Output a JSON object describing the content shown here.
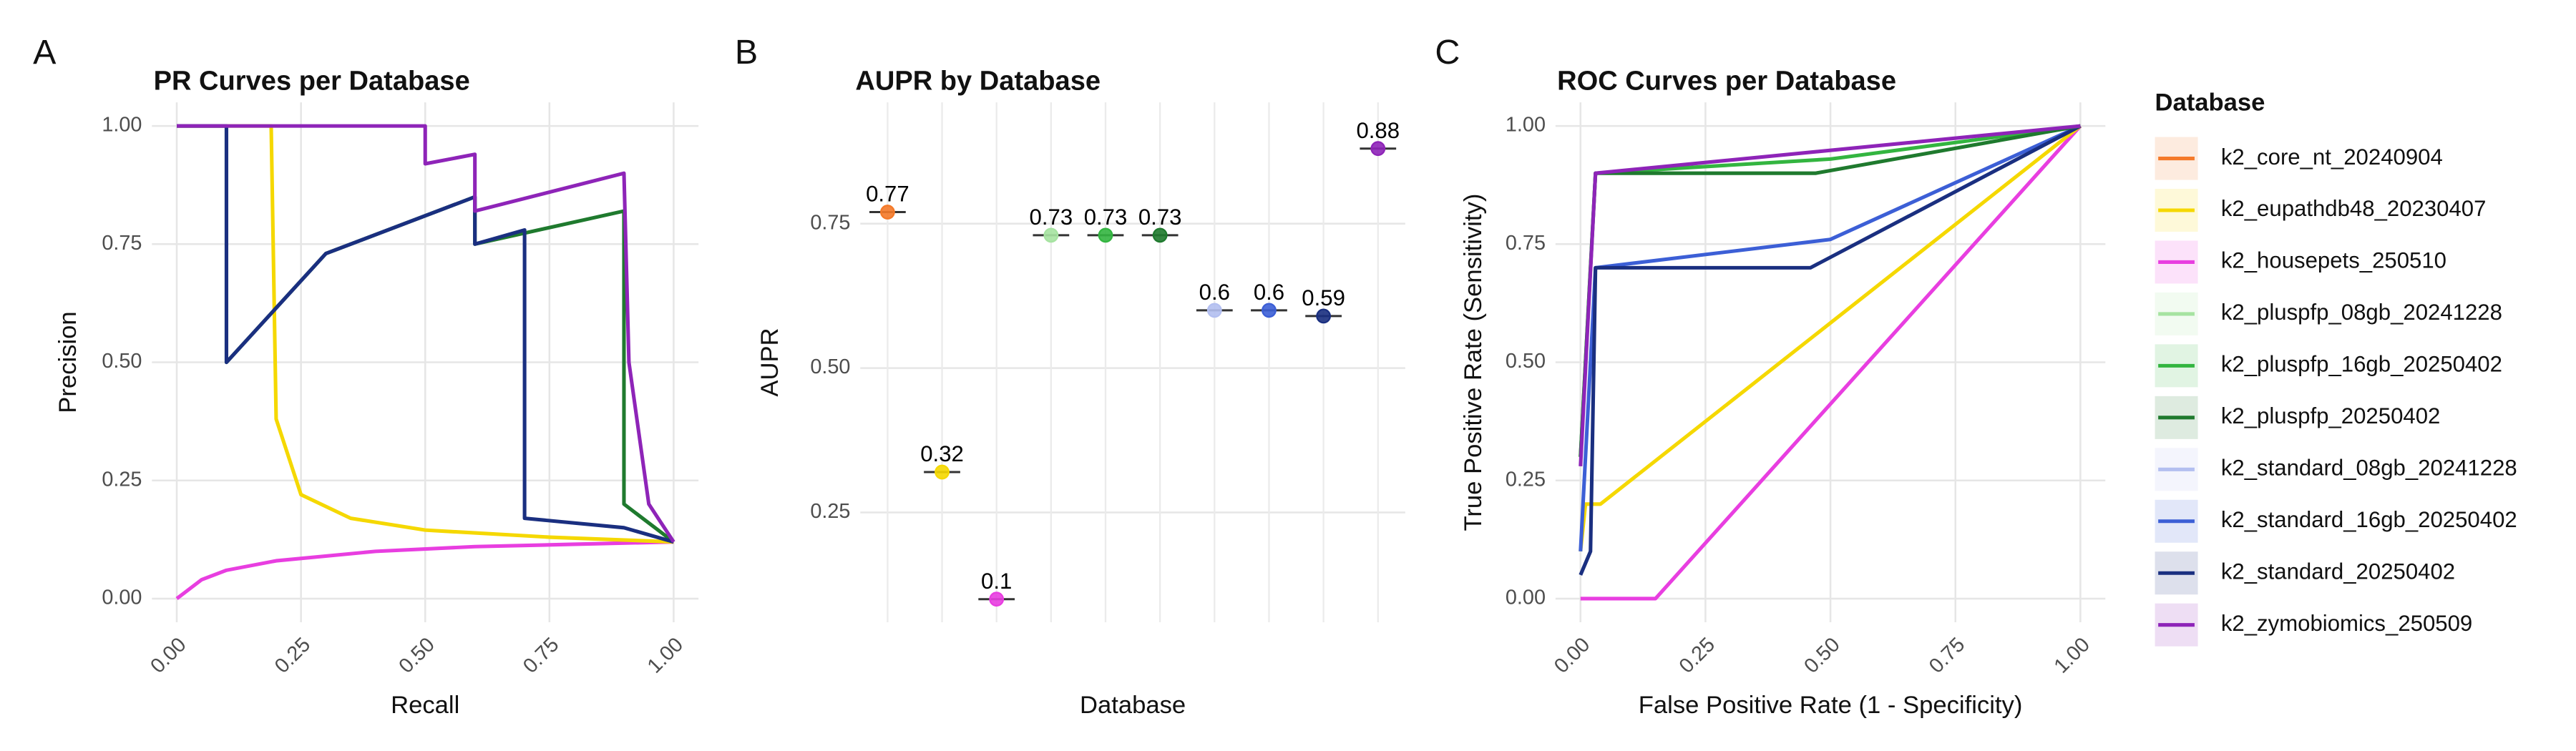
{
  "chart_data": [
    {
      "type": "line",
      "panel_label": "A",
      "title": "PR Curves per Database",
      "x_label": "Recall",
      "y_label": "Precision",
      "xlim": [
        -0.05,
        1.05
      ],
      "ylim": [
        -0.05,
        1.05
      ],
      "xticks": [
        {
          "value": 0,
          "label": "0.00"
        },
        {
          "value": 0.25,
          "label": "0.25"
        },
        {
          "value": 0.5,
          "label": "0.50"
        },
        {
          "value": 0.75,
          "label": "0.75"
        },
        {
          "value": 1,
          "label": "1.00"
        }
      ],
      "yticks": [
        {
          "value": 0,
          "label": "0.00"
        },
        {
          "value": 0.25,
          "label": "0.25"
        },
        {
          "value": 0.5,
          "label": "0.50"
        },
        {
          "value": 0.75,
          "label": "0.75"
        },
        {
          "value": 1,
          "label": "1.00"
        }
      ],
      "grid": true,
      "series": [
        {
          "color": "#e83ee0",
          "x": [
            0,
            0.05,
            0.1,
            0.2,
            0.4,
            0.6,
            0.8,
            1
          ],
          "values": [
            0,
            0.04,
            0.06,
            0.08,
            0.1,
            0.11,
            0.115,
            0.12
          ]
        },
        {
          "color": "#f5d800",
          "x": [
            0,
            0.19,
            0.2,
            0.25,
            0.35,
            0.5,
            0.75,
            1
          ],
          "values": [
            1,
            1,
            0.38,
            0.22,
            0.17,
            0.145,
            0.13,
            0.12
          ]
        },
        {
          "color": "#1f7a2e",
          "x": [
            0,
            0.1,
            0.1,
            0.3,
            0.6,
            0.6,
            0.9,
            0.9,
            1
          ],
          "values": [
            1,
            1,
            0.5,
            0.73,
            0.85,
            0.75,
            0.82,
            0.2,
            0.12
          ]
        },
        {
          "color": "#1a2f80",
          "x": [
            0,
            0.1,
            0.1,
            0.3,
            0.6,
            0.6,
            0.7,
            0.7,
            0.9,
            1
          ],
          "values": [
            1,
            1,
            0.5,
            0.73,
            0.85,
            0.75,
            0.78,
            0.17,
            0.15,
            0.12
          ]
        },
        {
          "color": "#8e24b8",
          "x": [
            0,
            0.5,
            0.5,
            0.6,
            0.6,
            0.9,
            0.91,
            0.95,
            1
          ],
          "values": [
            1,
            1,
            0.92,
            0.94,
            0.82,
            0.9,
            0.5,
            0.2,
            0.12
          ]
        }
      ]
    },
    {
      "type": "strip",
      "panel_label": "B",
      "title": "AUPR by Database",
      "x_label": "Database",
      "y_label": "AUPR",
      "categories": [
        null,
        null,
        null,
        null,
        null,
        null,
        null,
        null,
        null,
        null
      ],
      "values": [
        0.77,
        0.32,
        0.1,
        0.73,
        0.73,
        0.73,
        0.6,
        0.6,
        0.59,
        0.88
      ],
      "colors": [
        "#f47a2a",
        "#f5d800",
        "#e83ee0",
        "#a6e3a1",
        "#33b540",
        "#1f7a2e",
        "#b3bff0",
        "#3c5fd6",
        "#1a2f80",
        "#8e24b8"
      ],
      "ylim": [
        0.06,
        0.96
      ],
      "yticks": [
        {
          "value": 0.25,
          "label": "0.25"
        },
        {
          "value": 0.5,
          "label": "0.50"
        },
        {
          "value": 0.75,
          "label": "0.75"
        }
      ],
      "grid": true
    },
    {
      "type": "line",
      "panel_label": "C",
      "title": "ROC Curves per Database",
      "x_label": "False Positive Rate (1 - Specificity)",
      "y_label": "True Positive Rate (Sensitivity)",
      "xlim": [
        -0.05,
        1.05
      ],
      "ylim": [
        -0.05,
        1.05
      ],
      "xticks": [
        {
          "value": 0,
          "label": "0.00"
        },
        {
          "value": 0.25,
          "label": "0.25"
        },
        {
          "value": 0.5,
          "label": "0.50"
        },
        {
          "value": 0.75,
          "label": "0.75"
        },
        {
          "value": 1,
          "label": "1.00"
        }
      ],
      "yticks": [
        {
          "value": 0,
          "label": "0.00"
        },
        {
          "value": 0.25,
          "label": "0.25"
        },
        {
          "value": 0.5,
          "label": "0.50"
        },
        {
          "value": 0.75,
          "label": "0.75"
        },
        {
          "value": 1,
          "label": "1.00"
        }
      ],
      "grid": true,
      "series": [
        {
          "color": "#e83ee0",
          "x": [
            0,
            0.15,
            1
          ],
          "values": [
            0,
            0,
            1
          ]
        },
        {
          "color": "#f5d800",
          "x": [
            0,
            0.01,
            0.04,
            1
          ],
          "values": [
            0.1,
            0.2,
            0.2,
            1
          ]
        },
        {
          "color": "#3c5fd6",
          "x": [
            0,
            0.03,
            0.5,
            1
          ],
          "values": [
            0.1,
            0.7,
            0.76,
            1
          ]
        },
        {
          "color": "#1a2f80",
          "x": [
            0,
            0.02,
            0.03,
            0.46,
            1
          ],
          "values": [
            0.05,
            0.1,
            0.7,
            0.7,
            1
          ]
        },
        {
          "color": "#33b540",
          "x": [
            0,
            0.03,
            0.5,
            1
          ],
          "values": [
            0.3,
            0.9,
            0.93,
            1
          ]
        },
        {
          "color": "#1f7a2e",
          "x": [
            0,
            0.03,
            0.47,
            1
          ],
          "values": [
            0.3,
            0.9,
            0.9,
            1
          ]
        },
        {
          "color": "#8e24b8",
          "x": [
            0,
            0.03,
            1
          ],
          "values": [
            0.28,
            0.9,
            1
          ]
        }
      ]
    }
  ],
  "legend": {
    "title": "Database",
    "items": [
      {
        "name": "k2_core_nt_20240904",
        "color": "#f47a2a"
      },
      {
        "name": "k2_eupathdb48_20230407",
        "color": "#f5d800"
      },
      {
        "name": "k2_housepets_250510",
        "color": "#e83ee0"
      },
      {
        "name": "k2_pluspfp_08gb_20241228",
        "color": "#a6e3a1"
      },
      {
        "name": "k2_pluspfp_16gb_20250402",
        "color": "#33b540"
      },
      {
        "name": "k2_pluspfp_20250402",
        "color": "#1f7a2e"
      },
      {
        "name": "k2_standard_08gb_20241228",
        "color": "#b3bff0"
      },
      {
        "name": "k2_standard_16gb_20250402",
        "color": "#3c5fd6"
      },
      {
        "name": "k2_standard_20250402",
        "color": "#1a2f80"
      },
      {
        "name": "k2_zymobiomics_250509",
        "color": "#8e24b8"
      }
    ]
  }
}
